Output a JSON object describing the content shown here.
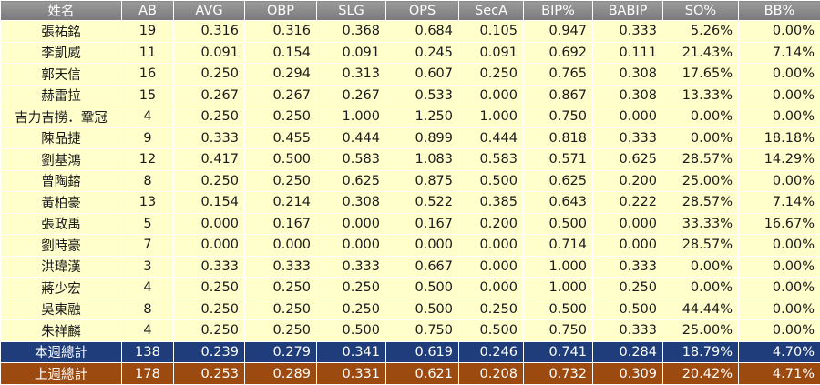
{
  "table": {
    "header": [
      "姓名",
      "AB",
      "AVG",
      "OBP",
      "SLG",
      "OPS",
      "SecA",
      "BIP%",
      "BABIP",
      "SO%",
      "BB%"
    ],
    "rows": [
      [
        "張祐銘",
        "19",
        "0.316",
        "0.316",
        "0.368",
        "0.684",
        "0.105",
        "0.947",
        "0.333",
        "5.26%",
        "0.00%"
      ],
      [
        "李凱威",
        "11",
        "0.091",
        "0.154",
        "0.091",
        "0.245",
        "0.091",
        "0.692",
        "0.111",
        "21.43%",
        "7.14%"
      ],
      [
        "郭天信",
        "16",
        "0.250",
        "0.294",
        "0.313",
        "0.607",
        "0.250",
        "0.765",
        "0.308",
        "17.65%",
        "0.00%"
      ],
      [
        "赫雷拉",
        "15",
        "0.267",
        "0.267",
        "0.267",
        "0.533",
        "0.000",
        "0.867",
        "0.308",
        "13.33%",
        "0.00%"
      ],
      [
        "吉力吉撈．鞏冠",
        "4",
        "0.250",
        "0.250",
        "1.000",
        "1.250",
        "1.000",
        "0.750",
        "0.000",
        "0.00%",
        "0.00%"
      ],
      [
        "陳品捷",
        "9",
        "0.333",
        "0.455",
        "0.444",
        "0.899",
        "0.444",
        "0.818",
        "0.333",
        "0.00%",
        "18.18%"
      ],
      [
        "劉基鴻",
        "12",
        "0.417",
        "0.500",
        "0.583",
        "1.083",
        "0.583",
        "0.571",
        "0.625",
        "28.57%",
        "14.29%"
      ],
      [
        "曾陶鎔",
        "8",
        "0.250",
        "0.250",
        "0.625",
        "0.875",
        "0.500",
        "0.625",
        "0.200",
        "25.00%",
        "0.00%"
      ],
      [
        "黃柏豪",
        "13",
        "0.154",
        "0.214",
        "0.308",
        "0.522",
        "0.385",
        "0.643",
        "0.222",
        "28.57%",
        "7.14%"
      ],
      [
        "張政禹",
        "5",
        "0.000",
        "0.167",
        "0.000",
        "0.167",
        "0.200",
        "0.500",
        "0.000",
        "33.33%",
        "16.67%"
      ],
      [
        "劉時豪",
        "7",
        "0.000",
        "0.000",
        "0.000",
        "0.000",
        "0.000",
        "0.714",
        "0.000",
        "28.57%",
        "0.00%"
      ],
      [
        "洪瑋漢",
        "3",
        "0.333",
        "0.333",
        "0.333",
        "0.667",
        "0.000",
        "1.000",
        "0.333",
        "0.00%",
        "0.00%"
      ],
      [
        "蔣少宏",
        "4",
        "0.250",
        "0.250",
        "0.250",
        "0.500",
        "0.000",
        "1.000",
        "0.250",
        "0.00%",
        "0.00%"
      ],
      [
        "吳東融",
        "8",
        "0.250",
        "0.250",
        "0.250",
        "0.500",
        "0.250",
        "0.500",
        "0.500",
        "44.44%",
        "0.00%"
      ],
      [
        "朱祥麟",
        "4",
        "0.250",
        "0.250",
        "0.500",
        "0.750",
        "0.500",
        "0.750",
        "0.333",
        "25.00%",
        "0.00%"
      ]
    ],
    "totals": [
      [
        "本週總計",
        "138",
        "0.239",
        "0.279",
        "0.341",
        "0.619",
        "0.246",
        "0.741",
        "0.284",
        "18.79%",
        "4.70%"
      ],
      [
        "上週總計",
        "178",
        "0.253",
        "0.289",
        "0.331",
        "0.621",
        "0.208",
        "0.732",
        "0.309",
        "20.42%",
        "4.71%"
      ]
    ]
  }
}
